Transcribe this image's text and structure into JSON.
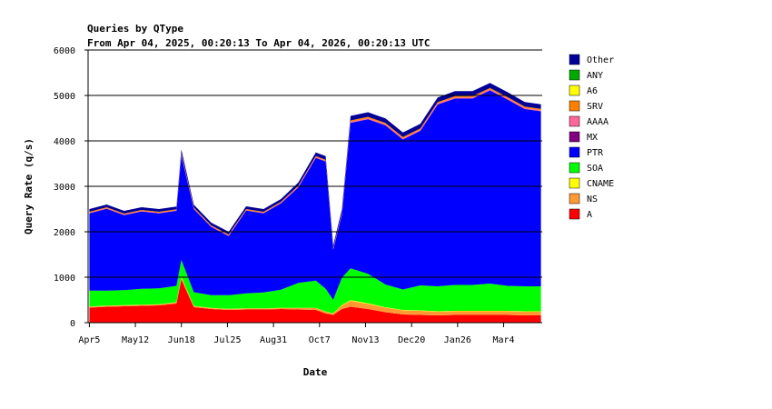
{
  "chart_data": {
    "type": "area",
    "title": "Queries by QType",
    "subtitle": "From Apr 04, 2025, 00:20:13 To Apr 04, 2026, 00:20:13 UTC",
    "xlabel": "Date",
    "ylabel": "Query Rate (q/s)",
    "ylim": [
      0,
      6000
    ],
    "yticks": [
      0,
      1000,
      2000,
      3000,
      4000,
      5000,
      6000
    ],
    "xlim": [
      "2025-04-04",
      "2026-04-04"
    ],
    "xticks": [
      {
        "label": "Apr5",
        "date": "2025-04-05"
      },
      {
        "label": "May12",
        "date": "2025-05-12"
      },
      {
        "label": "Jun18",
        "date": "2025-06-18"
      },
      {
        "label": "Jul25",
        "date": "2025-07-25"
      },
      {
        "label": "Aug31",
        "date": "2025-08-31"
      },
      {
        "label": "Oct7",
        "date": "2025-10-07"
      },
      {
        "label": "Nov13",
        "date": "2025-11-13"
      },
      {
        "label": "Dec20",
        "date": "2025-12-20"
      },
      {
        "label": "Jan26",
        "date": "2026-01-26"
      },
      {
        "label": "Mar4",
        "date": "2026-03-04"
      }
    ],
    "gridlines": "horizontal",
    "legend_position": "right",
    "stacked": true,
    "x": [
      "2025-04-05",
      "2025-04-19",
      "2025-05-03",
      "2025-05-17",
      "2025-05-31",
      "2025-06-14",
      "2025-06-18",
      "2025-06-28",
      "2025-07-12",
      "2025-07-26",
      "2025-08-09",
      "2025-08-23",
      "2025-09-06",
      "2025-09-20",
      "2025-10-04",
      "2025-10-12",
      "2025-10-18",
      "2025-10-25",
      "2025-11-01",
      "2025-11-15",
      "2025-11-29",
      "2025-12-13",
      "2025-12-27",
      "2026-01-10",
      "2026-01-24",
      "2026-02-07",
      "2026-02-21",
      "2026-03-07",
      "2026-03-21",
      "2026-04-03"
    ],
    "series": [
      {
        "name": "A",
        "color": "#ff0000",
        "values": [
          330,
          350,
          360,
          370,
          380,
          420,
          950,
          340,
          300,
          280,
          290,
          290,
          300,
          290,
          280,
          200,
          170,
          300,
          350,
          300,
          230,
          180,
          170,
          160,
          170,
          170,
          170,
          170,
          160,
          160
        ]
      },
      {
        "name": "NS",
        "color": "#ff9933",
        "values": [
          20,
          20,
          20,
          20,
          20,
          25,
          60,
          25,
          20,
          20,
          20,
          20,
          20,
          30,
          40,
          40,
          30,
          80,
          130,
          110,
          100,
          90,
          90,
          80,
          80,
          80,
          80,
          80,
          80,
          80
        ]
      },
      {
        "name": "CNAME",
        "color": "#ffff00",
        "values": [
          5,
          5,
          5,
          5,
          5,
          5,
          10,
          5,
          5,
          5,
          5,
          5,
          5,
          5,
          5,
          5,
          5,
          10,
          15,
          15,
          10,
          10,
          10,
          10,
          10,
          10,
          10,
          10,
          10,
          10
        ]
      },
      {
        "name": "SOA",
        "color": "#00ff00",
        "values": [
          350,
          330,
          330,
          350,
          350,
          360,
          360,
          300,
          280,
          300,
          330,
          350,
          400,
          550,
          600,
          500,
          300,
          600,
          700,
          650,
          500,
          450,
          550,
          550,
          570,
          570,
          600,
          550,
          550,
          550
        ]
      },
      {
        "name": "PTR",
        "color": "#0000ff",
        "values": [
          1700,
          1800,
          1650,
          1700,
          1650,
          1650,
          2300,
          1830,
          1500,
          1300,
          1820,
          1740,
          1900,
          2100,
          2700,
          2800,
          1100,
          1400,
          3200,
          3400,
          3500,
          3300,
          3400,
          4000,
          4100,
          4100,
          4250,
          4100,
          3900,
          3850
        ]
      },
      {
        "name": "MX",
        "color": "#800080",
        "values": [
          5,
          5,
          5,
          5,
          5,
          5,
          5,
          5,
          5,
          5,
          5,
          5,
          5,
          5,
          5,
          5,
          5,
          5,
          5,
          5,
          5,
          5,
          5,
          5,
          5,
          5,
          5,
          5,
          5,
          5
        ]
      },
      {
        "name": "AAAA",
        "color": "#ff6699",
        "values": [
          10,
          10,
          10,
          10,
          10,
          10,
          20,
          10,
          10,
          10,
          10,
          10,
          10,
          15,
          15,
          15,
          10,
          15,
          20,
          20,
          20,
          20,
          20,
          20,
          20,
          20,
          20,
          20,
          20,
          20
        ]
      },
      {
        "name": "SRV",
        "color": "#ff8000",
        "values": [
          20,
          20,
          20,
          20,
          20,
          20,
          25,
          20,
          20,
          20,
          20,
          20,
          20,
          20,
          20,
          20,
          20,
          20,
          30,
          30,
          30,
          30,
          30,
          30,
          30,
          30,
          30,
          30,
          30,
          30
        ]
      },
      {
        "name": "A6",
        "color": "#ffff00",
        "values": [
          0,
          0,
          0,
          0,
          0,
          0,
          0,
          0,
          0,
          0,
          0,
          0,
          0,
          0,
          0,
          0,
          0,
          0,
          0,
          0,
          0,
          0,
          0,
          0,
          0,
          0,
          0,
          0,
          0,
          0
        ]
      },
      {
        "name": "ANY",
        "color": "#00aa00",
        "values": [
          0,
          0,
          0,
          0,
          0,
          0,
          0,
          0,
          0,
          0,
          0,
          0,
          0,
          0,
          0,
          0,
          0,
          0,
          0,
          0,
          0,
          0,
          0,
          0,
          0,
          0,
          0,
          0,
          0,
          0
        ]
      },
      {
        "name": "Other",
        "color": "#000099",
        "values": [
          60,
          60,
          60,
          60,
          60,
          60,
          80,
          60,
          60,
          60,
          60,
          60,
          60,
          70,
          80,
          80,
          60,
          70,
          100,
          100,
          100,
          100,
          100,
          100,
          110,
          110,
          110,
          110,
          100,
          100
        ]
      }
    ],
    "legend_order": [
      "Other",
      "ANY",
      "A6",
      "SRV",
      "AAAA",
      "MX",
      "PTR",
      "SOA",
      "CNAME",
      "NS",
      "A"
    ]
  }
}
